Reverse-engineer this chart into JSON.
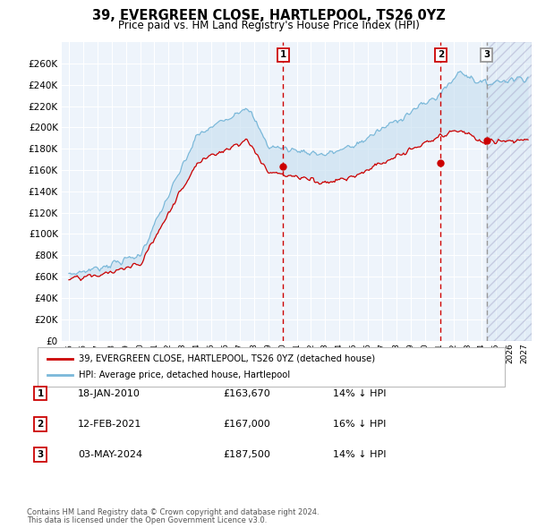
{
  "title": "39, EVERGREEN CLOSE, HARTLEPOOL, TS26 0YZ",
  "subtitle": "Price paid vs. HM Land Registry's House Price Index (HPI)",
  "legend_line1": "39, EVERGREEN CLOSE, HARTLEPOOL, TS26 0YZ (detached house)",
  "legend_line2": "HPI: Average price, detached house, Hartlepool",
  "transactions": [
    {
      "num": 1,
      "date": "18-JAN-2010",
      "price": 163670,
      "pct": "14%",
      "dir": "↓"
    },
    {
      "num": 2,
      "date": "12-FEB-2021",
      "price": 167000,
      "pct": "16%",
      "dir": "↓"
    },
    {
      "num": 3,
      "date": "03-MAY-2024",
      "price": 187500,
      "pct": "14%",
      "dir": "↓"
    }
  ],
  "footer1": "Contains HM Land Registry data © Crown copyright and database right 2024.",
  "footer2": "This data is licensed under the Open Government Licence v3.0.",
  "hpi_color": "#7ab8d9",
  "price_color": "#cc0000",
  "fill_color": "#c8dff0",
  "vline_red_color": "#cc0000",
  "vline_grey_color": "#999999",
  "bg_color": "#eef4fb",
  "grid_color": "#ffffff",
  "ylim_max": 280000,
  "yticks": [
    0,
    20000,
    40000,
    60000,
    80000,
    100000,
    120000,
    140000,
    160000,
    180000,
    200000,
    220000,
    240000,
    260000
  ],
  "xlim_start": 1994.5,
  "xlim_end": 2027.5
}
